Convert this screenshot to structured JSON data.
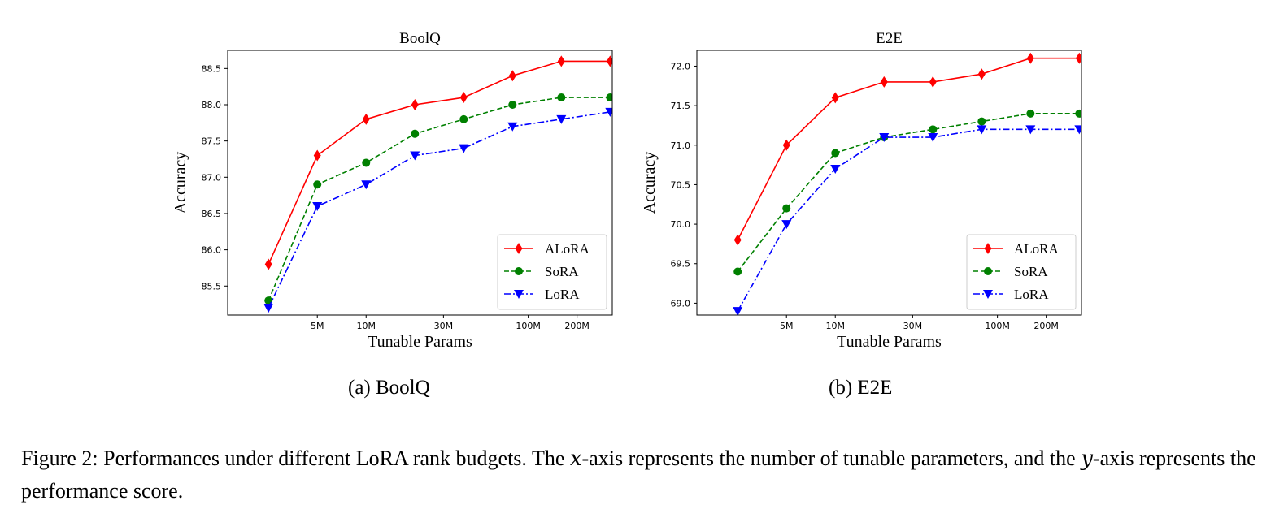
{
  "chart_data": [
    {
      "type": "line",
      "title": "BoolQ",
      "xlabel": "Tunable Params",
      "ylabel": "Accuracy",
      "x_scale": "log",
      "x_ticks": [
        {
          "value": 5,
          "label": "5M"
        },
        {
          "value": 10,
          "label": "10M"
        },
        {
          "value": 30,
          "label": "30M"
        },
        {
          "value": 100,
          "label": "100M"
        },
        {
          "value": 200,
          "label": "200M"
        }
      ],
      "x_range": [
        1.4,
        330
      ],
      "ylim": [
        85.1,
        88.75
      ],
      "y_ticks": [
        "85.5",
        "86.0",
        "86.5",
        "87.0",
        "87.5",
        "88.0",
        "88.5"
      ],
      "grid": false,
      "legend": "lower-right",
      "series": [
        {
          "name": "ALoRA",
          "color": "#ff0000",
          "marker": "diamond",
          "dash": "solid",
          "x": [
            2.5,
            5,
            10,
            20,
            40,
            80,
            160,
            320
          ],
          "y": [
            85.8,
            87.3,
            87.8,
            88.0,
            88.1,
            88.4,
            88.6,
            88.6
          ]
        },
        {
          "name": "SoRA",
          "color": "#008000",
          "marker": "circle",
          "dash": "dashed",
          "x": [
            2.5,
            5,
            10,
            20,
            40,
            80,
            160,
            320
          ],
          "y": [
            85.3,
            86.9,
            87.2,
            87.6,
            87.8,
            88.0,
            88.1,
            88.1
          ]
        },
        {
          "name": "LoRA",
          "color": "#0000ff",
          "marker": "triangle-down",
          "dash": "dashdot",
          "x": [
            2.5,
            5,
            10,
            20,
            40,
            80,
            160,
            320
          ],
          "y": [
            85.2,
            86.6,
            86.9,
            87.3,
            87.4,
            87.7,
            87.8,
            87.9
          ]
        }
      ]
    },
    {
      "type": "line",
      "title": "E2E",
      "xlabel": "Tunable Params",
      "ylabel": "Accuracy",
      "x_scale": "log",
      "x_ticks": [
        {
          "value": 5,
          "label": "5M"
        },
        {
          "value": 10,
          "label": "10M"
        },
        {
          "value": 30,
          "label": "30M"
        },
        {
          "value": 100,
          "label": "100M"
        },
        {
          "value": 200,
          "label": "200M"
        }
      ],
      "x_range": [
        1.4,
        330
      ],
      "ylim": [
        68.85,
        72.2
      ],
      "y_ticks": [
        "69.0",
        "69.5",
        "70.0",
        "70.5",
        "71.0",
        "71.5",
        "72.0"
      ],
      "grid": false,
      "legend": "lower-right",
      "series": [
        {
          "name": "ALoRA",
          "color": "#ff0000",
          "marker": "diamond",
          "dash": "solid",
          "x": [
            2.5,
            5,
            10,
            20,
            40,
            80,
            160,
            320
          ],
          "y": [
            69.8,
            71.0,
            71.6,
            71.8,
            71.8,
            71.9,
            72.1,
            72.1
          ]
        },
        {
          "name": "SoRA",
          "color": "#008000",
          "marker": "circle",
          "dash": "dashed",
          "x": [
            2.5,
            5,
            10,
            20,
            40,
            80,
            160,
            320
          ],
          "y": [
            69.4,
            70.2,
            70.9,
            71.1,
            71.2,
            71.3,
            71.4,
            71.4
          ]
        },
        {
          "name": "LoRA",
          "color": "#0000ff",
          "marker": "triangle-down",
          "dash": "dashdot",
          "x": [
            2.5,
            5,
            10,
            20,
            40,
            80,
            160,
            320
          ],
          "y": [
            68.9,
            70.0,
            70.7,
            71.1,
            71.1,
            71.2,
            71.2,
            71.2
          ]
        }
      ]
    }
  ],
  "subcaptions": [
    "(a)  BoolQ",
    "(b)  E2E"
  ],
  "caption": {
    "part1": "Figure 2: Performances under different LoRA rank budgets. The ",
    "x_var": "x",
    "part2": "-axis represents the number of tunable parameters, and the ",
    "y_var": "y",
    "part3": "-axis represents the performance score."
  }
}
